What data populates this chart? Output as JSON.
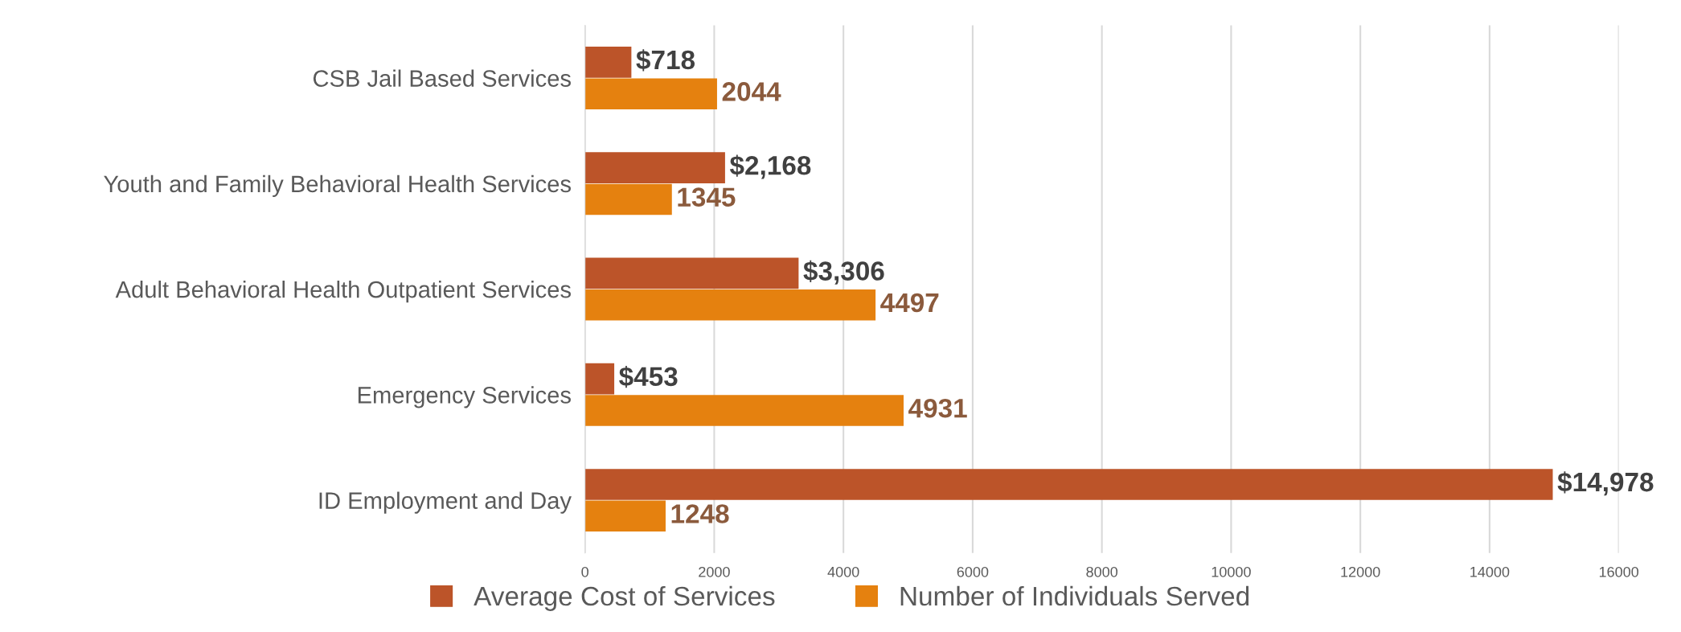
{
  "chart_data": {
    "type": "bar",
    "orientation": "horizontal",
    "categories": [
      "CSB Jail Based Services",
      "Youth and Family Behavioral Health Services",
      "Adult Behavioral Health Outpatient Services",
      "Emergency Services",
      "ID Employment and Day"
    ],
    "series": [
      {
        "name": "Average Cost of Services",
        "color": "#bc5429",
        "values": [
          718,
          2168,
          3306,
          453,
          14978
        ],
        "value_labels": [
          "$718",
          "$2,168",
          "$3,306",
          "$453",
          "$14,978"
        ]
      },
      {
        "name": "Number of Individuals Served",
        "color": "#e5810f",
        "values": [
          2044,
          1345,
          4497,
          4931,
          1248
        ],
        "value_labels": [
          "2044",
          "1345",
          "4497",
          "4931",
          "1248"
        ]
      }
    ],
    "xlim": [
      0,
      16000
    ],
    "xticks": [
      0,
      2000,
      4000,
      6000,
      8000,
      10000,
      12000,
      14000,
      16000
    ],
    "grid": "x",
    "legend": "bottom"
  }
}
